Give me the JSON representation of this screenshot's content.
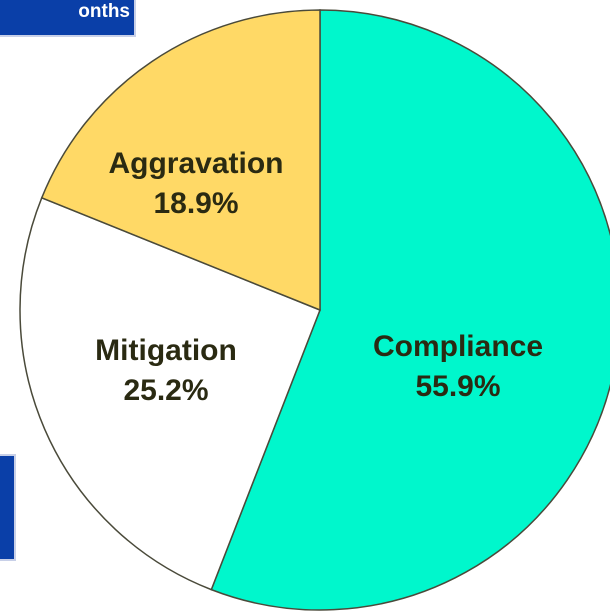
{
  "chart_data": {
    "type": "pie",
    "header": "onths",
    "categories": [
      "Compliance",
      "Mitigation",
      "Aggravation"
    ],
    "values": [
      55.9,
      25.2,
      18.9
    ],
    "value_labels": [
      "55.9%",
      "25.2%",
      "18.9%"
    ],
    "colors": [
      "#00f7cc",
      "#ffffff",
      "#ffd966"
    ]
  }
}
